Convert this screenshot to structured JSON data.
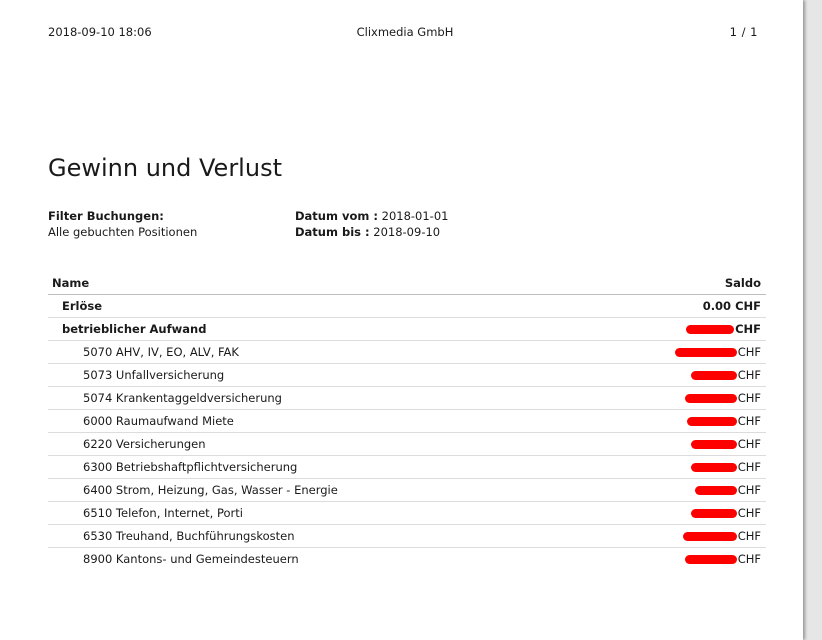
{
  "header": {
    "datetime": "2018-09-10 18:06",
    "company": "Clixmedia GmbH",
    "page": "1 / 1"
  },
  "title": "Gewinn und Verlust",
  "filter": {
    "label": "Filter Buchungen:",
    "value": "Alle gebuchten Positionen",
    "date_from_label": "Datum vom :",
    "date_from": "2018-01-01",
    "date_to_label": "Datum bis :",
    "date_to": "2018-09-10"
  },
  "table": {
    "col_name": "Name",
    "col_saldo": "Saldo",
    "rows": [
      {
        "name": "Erlöse",
        "amount": "0.00",
        "currency": "CHF"
      },
      {
        "name": "betrieblicher Aufwand",
        "currency": "CHF"
      },
      {
        "name": "5070 AHV, IV, EO, ALV, FAK",
        "currency": "CHF"
      },
      {
        "name": "5073 Unfallversicherung",
        "currency": "CHF"
      },
      {
        "name": "5074 Krankentaggeldversicherung",
        "currency": "CHF"
      },
      {
        "name": "6000 Raumaufwand Miete",
        "currency": "CHF"
      },
      {
        "name": "6220 Versicherungen",
        "currency": "CHF"
      },
      {
        "name": "6300 Betriebshaftpflichtversicherung",
        "currency": "CHF"
      },
      {
        "name": "6400 Strom, Heizung, Gas, Wasser - Energie",
        "currency": "CHF"
      },
      {
        "name": "6510 Telefon, Internet, Porti",
        "currency": "CHF"
      },
      {
        "name": "6530 Treuhand, Buchführungskosten",
        "currency": "CHF"
      },
      {
        "name": "8900 Kantons- und Gemeindesteuern",
        "currency": "CHF"
      }
    ]
  }
}
